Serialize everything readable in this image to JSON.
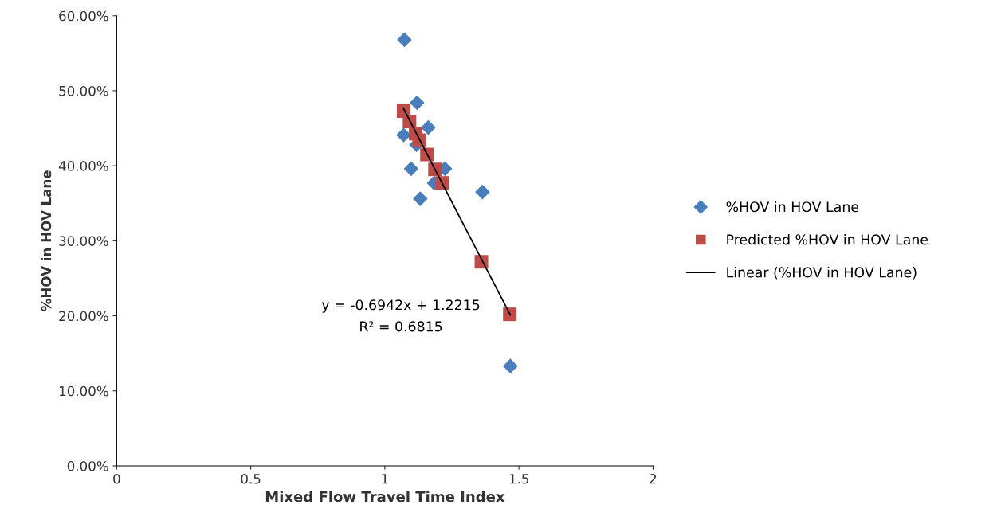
{
  "chart_data": {
    "type": "scatter",
    "xlabel": "Mixed Flow Travel Time Index",
    "ylabel": "%HOV in HOV Lane",
    "xlim": [
      0,
      2
    ],
    "xticks": [
      0,
      0.5,
      1,
      1.5,
      2
    ],
    "ylim": [
      0,
      60
    ],
    "yticks": [
      {
        "value": 0,
        "label": "0.00%"
      },
      {
        "value": 10,
        "label": "10.00%"
      },
      {
        "value": 20,
        "label": "20.00%"
      },
      {
        "value": 30,
        "label": "30.00%"
      },
      {
        "value": 40,
        "label": "40.00%"
      },
      {
        "value": 50,
        "label": "50.00%"
      },
      {
        "value": 60,
        "label": "60.00%"
      }
    ],
    "series": [
      {
        "name": "%HOV in HOV Lane",
        "marker": "diamond",
        "color": "#4a7ebb",
        "x": [
          1.073,
          1.12,
          1.162,
          1.07,
          1.118,
          1.098,
          1.224,
          1.184,
          1.364,
          1.132,
          1.468
        ],
        "values": [
          56.8,
          48.4,
          45.1,
          44.1,
          42.8,
          39.6,
          39.6,
          37.7,
          36.5,
          35.6,
          13.3
        ]
      },
      {
        "name": "Predicted %HOV in HOV Lane",
        "marker": "square",
        "color": "#be4b48",
        "x": [
          1.07,
          1.092,
          1.115,
          1.128,
          1.157,
          1.187,
          1.214,
          1.36,
          1.466
        ],
        "values": [
          47.3,
          45.9,
          44.3,
          43.4,
          41.5,
          39.5,
          37.7,
          27.2,
          20.2
        ]
      },
      {
        "name": "Linear (%HOV in HOV Lane)",
        "type": "line",
        "marker": "none",
        "color": "#000000",
        "x": [
          1.07,
          1.468
        ],
        "values": [
          47.6,
          20.1
        ]
      }
    ],
    "annotations": [
      "y = -0.6942x + 1.2215",
      "R² = 0.6815"
    ],
    "legend": "right",
    "grid": false
  }
}
